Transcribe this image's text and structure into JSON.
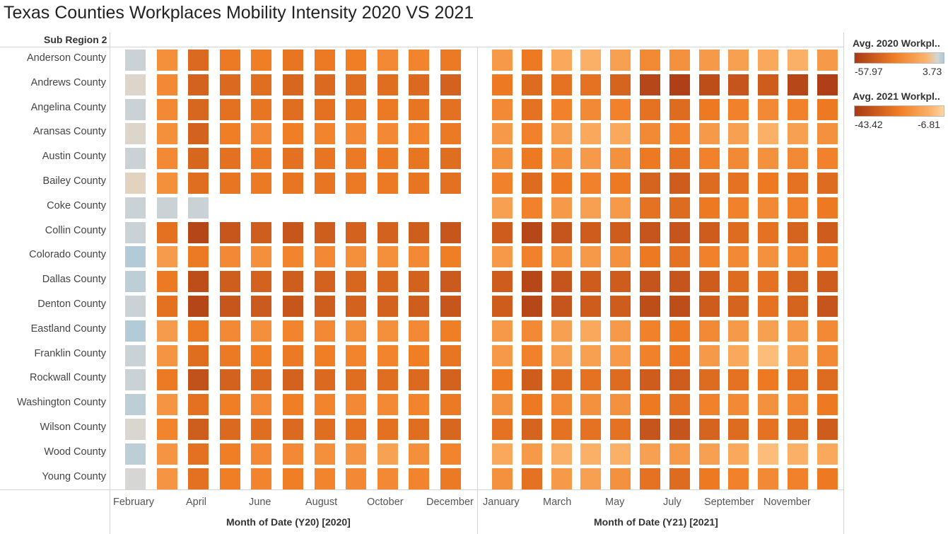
{
  "title": "Texas Counties Workplaces Mobility Intensity 2020 VS 2021",
  "chart_data": {
    "type": "heatmap",
    "row_header": "Sub Region 2",
    "rows": [
      "Anderson County",
      "Andrews County",
      "Angelina County",
      "Aransas County",
      "Austin County",
      "Bailey County",
      "Coke County",
      "Collin County",
      "Colorado County",
      "Dallas County",
      "Denton County",
      "Eastland County",
      "Franklin County",
      "Rockwall County",
      "Washington County",
      "Wilson County",
      "Wood County",
      "Young County"
    ],
    "panels": [
      {
        "axis_title": "Month of Date (Y20) [2020]",
        "tick_labels": [
          "February",
          "April",
          "June",
          "August",
          "October",
          "December"
        ],
        "legend_title": "Avg. 2020 Workpl..",
        "legend_min": "-57.97",
        "legend_max": "3.73",
        "range": [
          -57.97,
          3.73
        ],
        "values": [
          [
            1,
            -18,
            -34,
            -26,
            -24,
            -28,
            -26,
            -24,
            -20,
            -22,
            -26
          ],
          [
            -2,
            -20,
            -38,
            -34,
            -32,
            -36,
            -34,
            -32,
            -32,
            -34,
            -38
          ],
          [
            1,
            -20,
            -36,
            -30,
            -28,
            -32,
            -30,
            -28,
            -26,
            -28,
            -30
          ],
          [
            -2,
            -18,
            -38,
            -24,
            -20,
            -24,
            -22,
            -20,
            -20,
            -22,
            -26
          ],
          [
            1,
            -20,
            -36,
            -30,
            -26,
            -30,
            -28,
            -26,
            -26,
            -28,
            -32
          ],
          [
            -4,
            -18,
            -32,
            -28,
            -26,
            -28,
            -28,
            -26,
            -26,
            -28,
            -30
          ],
          [
            1,
            1,
            1,
            null,
            null,
            null,
            null,
            null,
            null,
            null,
            null
          ],
          [
            1,
            -30,
            -52,
            -44,
            -40,
            -44,
            -40,
            -38,
            -38,
            -40,
            -44
          ],
          [
            3,
            -14,
            -26,
            -20,
            -18,
            -22,
            -20,
            -18,
            -18,
            -20,
            -24
          ],
          [
            2,
            -26,
            -48,
            -40,
            -38,
            -40,
            -38,
            -36,
            -36,
            -38,
            -42
          ],
          [
            1,
            -30,
            -52,
            -44,
            -42,
            -44,
            -40,
            -38,
            -38,
            -40,
            -44
          ],
          [
            3,
            -14,
            -26,
            -20,
            -18,
            -22,
            -20,
            -18,
            -18,
            -20,
            -24
          ],
          [
            1,
            -16,
            -32,
            -26,
            -24,
            -26,
            -24,
            -22,
            -22,
            -24,
            -28
          ],
          [
            1,
            -26,
            -46,
            -38,
            -34,
            -38,
            -34,
            -32,
            -32,
            -34,
            -38
          ],
          [
            2,
            -16,
            -30,
            -24,
            -20,
            -24,
            -22,
            -20,
            -20,
            -22,
            -26
          ],
          [
            -1,
            -22,
            -40,
            -34,
            -32,
            -34,
            -32,
            -30,
            -30,
            -32,
            -36
          ],
          [
            2,
            -16,
            -30,
            -24,
            -20,
            -20,
            -18,
            -16,
            -12,
            -18,
            -22
          ],
          [
            0,
            -16,
            -30,
            -24,
            -22,
            -24,
            -22,
            -20,
            -20,
            -22,
            -26
          ]
        ]
      },
      {
        "axis_title": "Month of Date (Y21) [2021]",
        "tick_labels": [
          "January",
          "March",
          "May",
          "July",
          "September",
          "November"
        ],
        "legend_title": "Avg. 2021 Workpl..",
        "legend_min": "-43.42",
        "legend_max": "-6.81",
        "range": [
          -43.42,
          -6.81
        ],
        "values": [
          [
            -18,
            -26,
            -14,
            -12,
            -16,
            -22,
            -20,
            -18,
            -16,
            -14,
            -12,
            -18
          ],
          [
            -26,
            -30,
            -28,
            -28,
            -32,
            -40,
            -42,
            -38,
            -36,
            -34,
            -40,
            -42
          ],
          [
            -22,
            -28,
            -24,
            -22,
            -24,
            -28,
            -30,
            -26,
            -24,
            -22,
            -24,
            -26
          ],
          [
            -18,
            -24,
            -16,
            -14,
            -14,
            -22,
            -24,
            -18,
            -16,
            -12,
            -16,
            -20
          ],
          [
            -20,
            -26,
            -20,
            -18,
            -20,
            -26,
            -28,
            -24,
            -22,
            -20,
            -22,
            -24
          ],
          [
            -24,
            -30,
            -26,
            -24,
            -26,
            -32,
            -34,
            -30,
            -28,
            -26,
            -28,
            -30
          ],
          [
            -16,
            -24,
            -18,
            -16,
            -18,
            -28,
            -30,
            -26,
            -24,
            -22,
            -24,
            -26
          ],
          [
            -34,
            -40,
            -36,
            -34,
            -34,
            -36,
            -36,
            -34,
            -30,
            -28,
            -32,
            -34
          ],
          [
            -18,
            -24,
            -20,
            -18,
            -20,
            -26,
            -28,
            -24,
            -22,
            -20,
            -22,
            -24
          ],
          [
            -34,
            -40,
            -36,
            -34,
            -34,
            -36,
            -36,
            -34,
            -30,
            -28,
            -32,
            -34
          ],
          [
            -34,
            -40,
            -36,
            -34,
            -34,
            -38,
            -38,
            -34,
            -32,
            -28,
            -32,
            -36
          ],
          [
            -18,
            -22,
            -16,
            -14,
            -18,
            -24,
            -26,
            -22,
            -18,
            -16,
            -18,
            -22
          ],
          [
            -18,
            -24,
            -16,
            -16,
            -18,
            -24,
            -26,
            -18,
            -14,
            -10,
            -16,
            -22
          ],
          [
            -26,
            -34,
            -30,
            -28,
            -30,
            -34,
            -34,
            -30,
            -28,
            -26,
            -28,
            -30
          ],
          [
            -20,
            -26,
            -22,
            -20,
            -20,
            -26,
            -28,
            -24,
            -22,
            -20,
            -22,
            -26
          ],
          [
            -28,
            -32,
            -28,
            -28,
            -28,
            -36,
            -36,
            -32,
            -30,
            -28,
            -30,
            -34
          ],
          [
            -14,
            -18,
            -12,
            -12,
            -12,
            -16,
            -18,
            -16,
            -14,
            -10,
            -12,
            -14
          ],
          [
            -20,
            -28,
            -18,
            -16,
            -20,
            -28,
            -30,
            -26,
            -24,
            -22,
            -24,
            -26
          ]
        ]
      }
    ],
    "colors": {
      "dark": "#a83a16",
      "mid": "#f07d24",
      "light": "#fbb36a",
      "lightest_2021": "#fdd6a6",
      "neutral_2020": "#d6d6d4",
      "positive_2020": "#a9c8d8"
    }
  }
}
